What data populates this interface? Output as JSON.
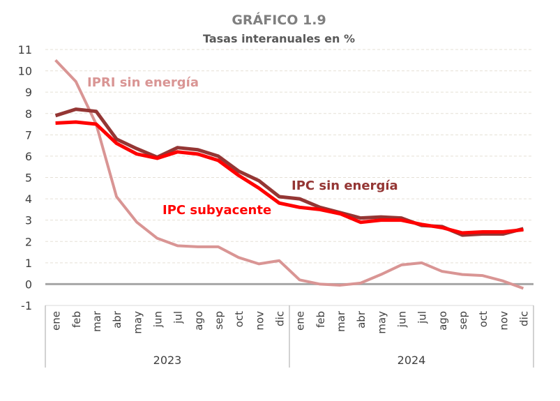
{
  "chart_data": {
    "type": "line",
    "title": "GRÁFICO 1.9",
    "subtitle": "Tasas interanuales en %",
    "categories": [
      "ene",
      "feb",
      "mar",
      "abr",
      "may",
      "jun",
      "jul",
      "ago",
      "sep",
      "oct",
      "nov",
      "dic",
      "ene",
      "feb",
      "mar",
      "abr",
      "may",
      "jun",
      "jul",
      "ago",
      "sep",
      "oct",
      "nov",
      "dic"
    ],
    "year_groups": [
      {
        "label": "2023",
        "count": 12
      },
      {
        "label": "2024",
        "count": 12
      }
    ],
    "ylim": [
      -1,
      11
    ],
    "yticks": [
      -1,
      0,
      1,
      2,
      3,
      4,
      5,
      6,
      7,
      8,
      9,
      10,
      11
    ],
    "grid": true,
    "series": [
      {
        "name": "IPRI sin energía",
        "color": "#d99594",
        "values": [
          10.5,
          9.5,
          7.5,
          4.1,
          2.9,
          2.15,
          1.8,
          1.75,
          1.75,
          1.25,
          0.95,
          1.1,
          0.2,
          0.0,
          -0.05,
          0.05,
          0.45,
          0.9,
          1.0,
          0.6,
          0.45,
          0.4,
          0.15,
          -0.2
        ]
      },
      {
        "name": "IPC sin energía",
        "color": "#943634",
        "values": [
          7.9,
          8.2,
          8.1,
          6.8,
          6.35,
          5.95,
          6.4,
          6.3,
          6.0,
          5.3,
          4.85,
          4.1,
          4.0,
          3.6,
          3.35,
          3.1,
          3.15,
          3.1,
          2.75,
          2.7,
          2.3,
          2.35,
          2.35,
          2.6
        ]
      },
      {
        "name": "IPC subyacente",
        "color": "#ff0000",
        "values": [
          7.55,
          7.6,
          7.5,
          6.6,
          6.1,
          5.9,
          6.2,
          6.1,
          5.8,
          5.1,
          4.5,
          3.8,
          3.6,
          3.5,
          3.3,
          2.9,
          3.0,
          3.0,
          2.8,
          2.65,
          2.4,
          2.45,
          2.45,
          2.55
        ]
      }
    ]
  }
}
